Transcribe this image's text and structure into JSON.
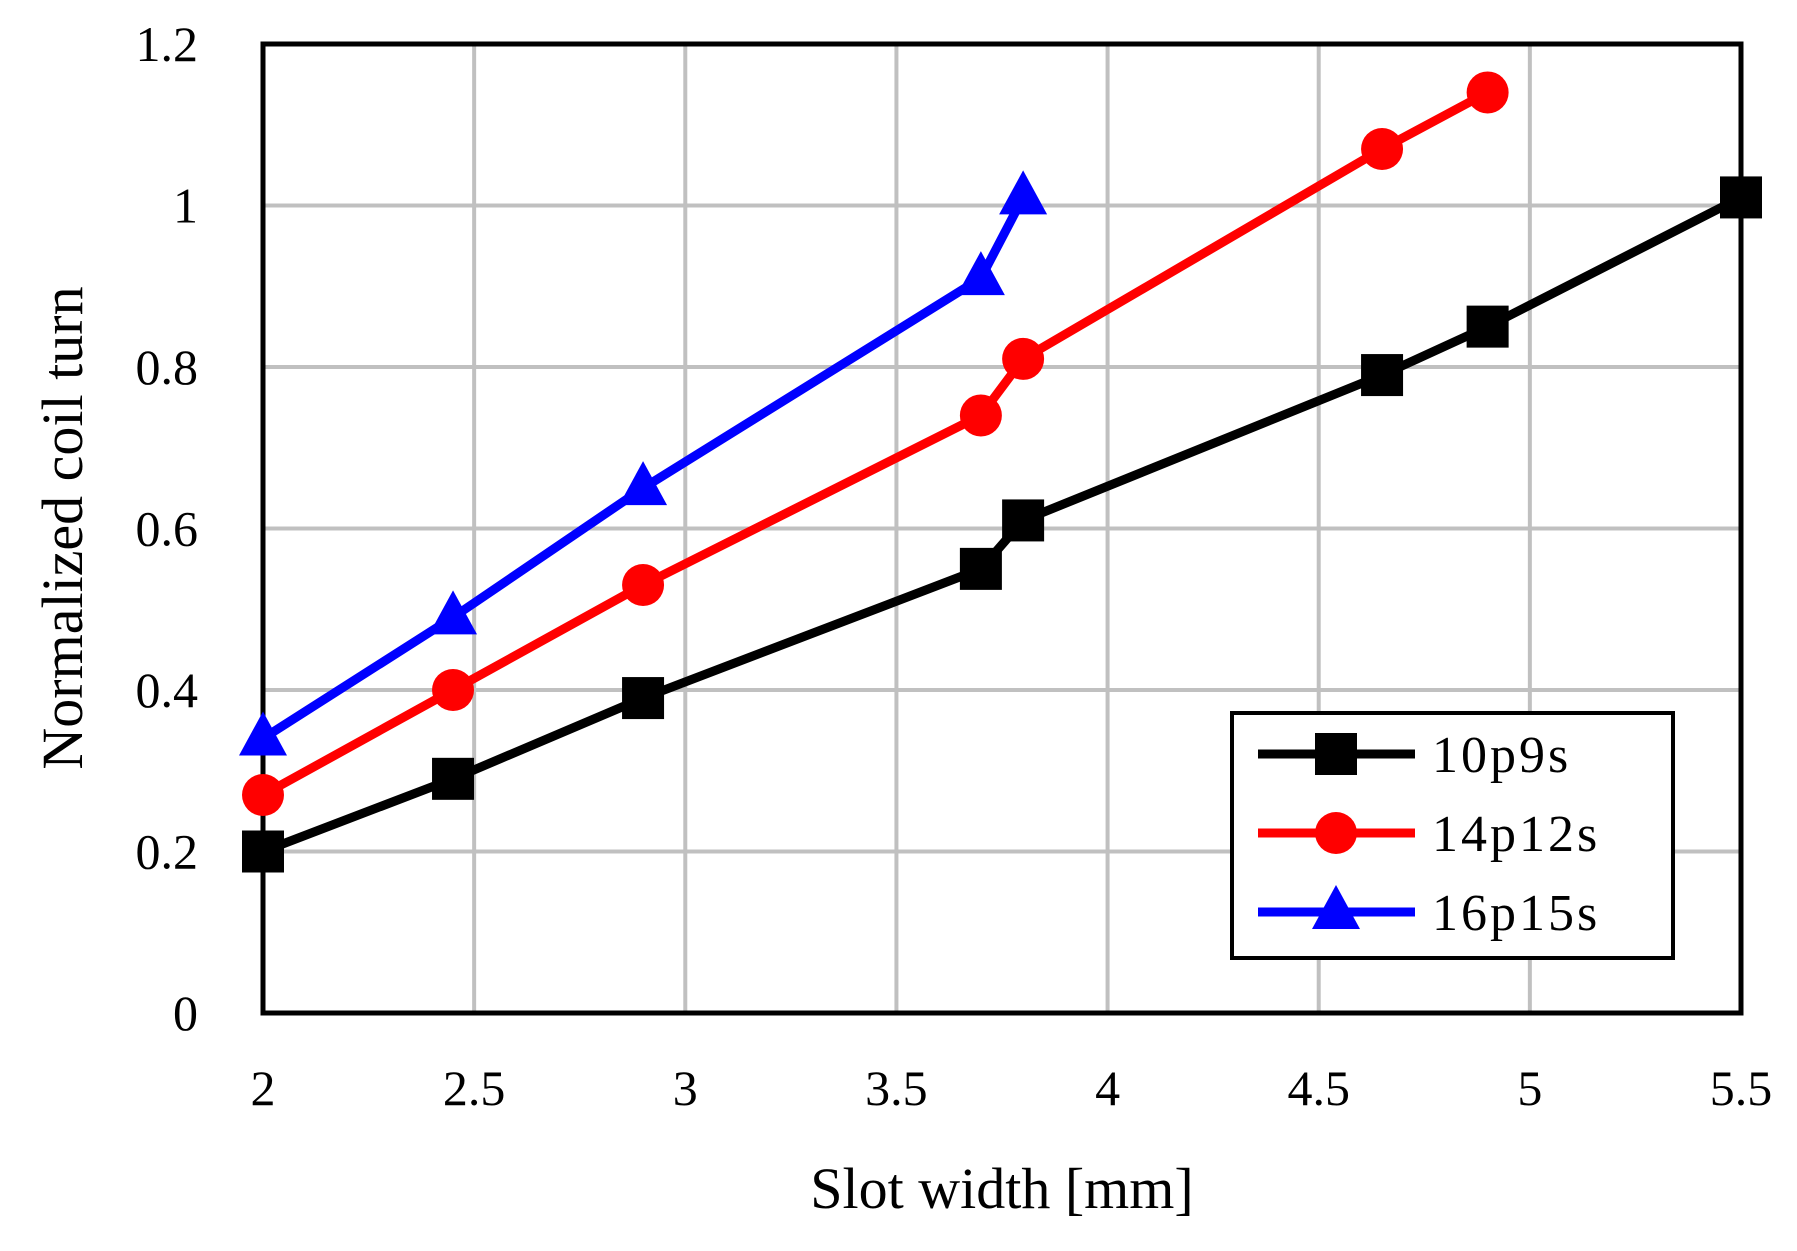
{
  "chart_data": {
    "type": "line",
    "title": "",
    "xlabel": "Slot width [mm]",
    "ylabel": "Normalized coil turn",
    "xlim": [
      2,
      5.5
    ],
    "ylim": [
      0,
      1.2
    ],
    "xticks": [
      2,
      2.5,
      3,
      3.5,
      4,
      4.5,
      5,
      5.5
    ],
    "xtick_labels": [
      "2",
      "2.5",
      "3",
      "3.5",
      "4",
      "4.5",
      "5",
      "5.5"
    ],
    "yticks": [
      0,
      0.2,
      0.4,
      0.6,
      0.8,
      1,
      1.2
    ],
    "ytick_labels": [
      "0",
      "0.2",
      "0.4",
      "0.6",
      "0.8",
      "1",
      "1.2"
    ],
    "grid": true,
    "legend_position": "bottom-right",
    "series": [
      {
        "name": "10p9s",
        "color": "#000000",
        "marker": "square",
        "x": [
          2.0,
          2.45,
          2.9,
          3.7,
          3.8,
          4.65,
          4.9,
          5.5
        ],
        "y": [
          0.2,
          0.29,
          0.39,
          0.55,
          0.61,
          0.79,
          0.85,
          1.01
        ]
      },
      {
        "name": "14p12s",
        "color": "#ff0000",
        "marker": "circle",
        "x": [
          2.0,
          2.45,
          2.9,
          3.7,
          3.8,
          4.65,
          4.9
        ],
        "y": [
          0.27,
          0.4,
          0.53,
          0.74,
          0.81,
          1.07,
          1.14
        ]
      },
      {
        "name": "16p15s",
        "color": "#0000ff",
        "marker": "triangle",
        "x": [
          2.0,
          2.45,
          2.9,
          3.7,
          3.8
        ],
        "y": [
          0.34,
          0.49,
          0.65,
          0.91,
          1.01
        ]
      }
    ]
  }
}
